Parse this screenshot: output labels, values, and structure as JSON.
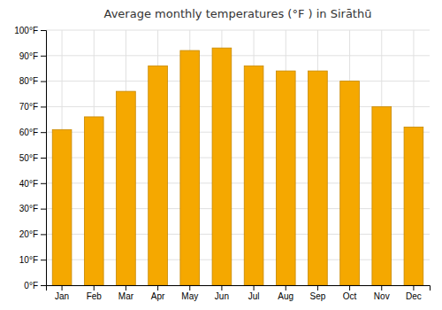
{
  "chart_data": {
    "type": "bar",
    "title": "Average monthly temperatures (°F ) in Sirāthū",
    "categories": [
      "Jan",
      "Feb",
      "Mar",
      "Apr",
      "May",
      "Jun",
      "Jul",
      "Aug",
      "Sep",
      "Oct",
      "Nov",
      "Dec"
    ],
    "values": [
      61,
      66,
      76,
      86,
      92,
      93,
      86,
      84,
      84,
      80,
      70,
      62
    ],
    "color": "#F5A800",
    "ylim": [
      0,
      100
    ],
    "yticks": [
      {
        "value": 0,
        "label": "0°F"
      },
      {
        "value": 10,
        "label": "10°F"
      },
      {
        "value": 20,
        "label": "20°F"
      },
      {
        "value": 30,
        "label": "30°F"
      },
      {
        "value": 40,
        "label": "40°F"
      },
      {
        "value": 50,
        "label": "50°F"
      },
      {
        "value": 60,
        "label": "60°F"
      },
      {
        "value": 70,
        "label": "70°F"
      },
      {
        "value": 80,
        "label": "80°F"
      },
      {
        "value": 90,
        "label": "90°F"
      },
      {
        "value": 100,
        "label": "100°F"
      }
    ],
    "grid": true
  }
}
